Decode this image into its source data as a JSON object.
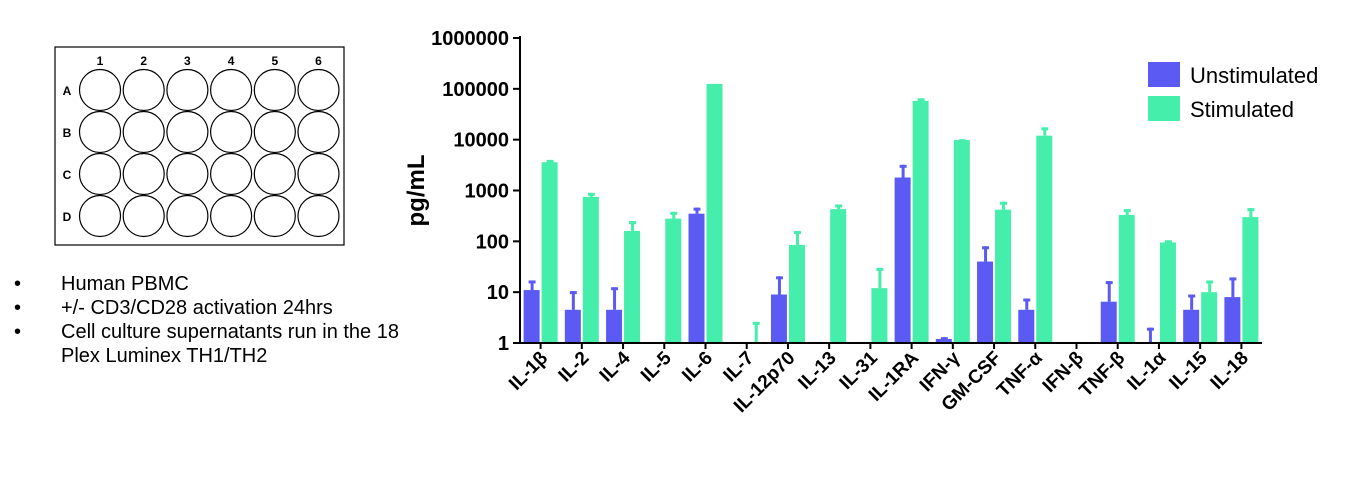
{
  "plate": {
    "columns": [
      "1",
      "2",
      "3",
      "4",
      "5",
      "6"
    ],
    "rows": [
      "A",
      "B",
      "C",
      "D"
    ]
  },
  "notes": {
    "bullet_symbol": "•",
    "items": [
      "Human PBMC",
      "+/- CD3/CD28 activation 24hrs",
      "Cell culture supernatants run in the 18 Plex Luminex TH1/TH2"
    ]
  },
  "chart_data": {
    "type": "bar",
    "title": "",
    "xlabel": "",
    "ylabel": "pg/mL",
    "yscale": "log",
    "ylim": [
      1,
      1000000
    ],
    "ytick_labels": [
      "1",
      "10",
      "100",
      "1000",
      "10000",
      "100000",
      "1000000"
    ],
    "legend_position": "top-right",
    "categories": [
      "IL-1β",
      "IL-2",
      "IL-4",
      "IL-5",
      "IL-6",
      "IL-7",
      "IL-12p70",
      "IL-13",
      "IL-31",
      "IL-1RA",
      "IFN-γ",
      "GM-CSF",
      "TNF-α",
      "IFN-β",
      "TNF-β",
      "IL-1α",
      "IL-15",
      "IL-18"
    ],
    "series": [
      {
        "name": "Unstimulated",
        "color": "#5b5bf3",
        "values": [
          11,
          4.5,
          4.5,
          null,
          350,
          null,
          9,
          null,
          null,
          1800,
          1.2,
          40,
          4.5,
          null,
          6.5,
          null,
          4.5,
          8
        ],
        "error_upper": [
          17,
          10.5,
          12.5,
          null,
          460,
          null,
          20.5,
          null,
          null,
          3200,
          1.3,
          80,
          7.5,
          null,
          16.5,
          2,
          9,
          19.5
        ]
      },
      {
        "name": "Stimulated",
        "color": "#45eeab",
        "values": [
          3600,
          750,
          160,
          280,
          125000,
          null,
          85,
          430,
          12,
          58000,
          9800,
          420,
          12000,
          null,
          330,
          95,
          10,
          300
        ],
        "error_upper": [
          4000,
          900,
          250,
          380,
          null,
          2.6,
          160,
          530,
          30,
          65000,
          10200,
          600,
          17500,
          null,
          430,
          105,
          17,
          450
        ]
      }
    ]
  }
}
